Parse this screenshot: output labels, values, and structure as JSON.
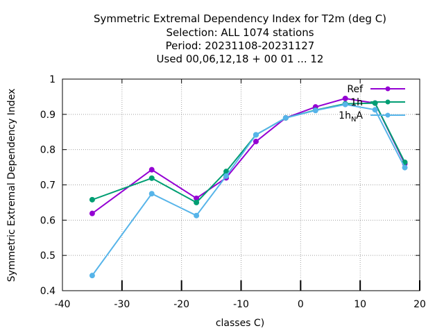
{
  "chart_data": {
    "type": "line",
    "title_lines": [
      "Symmetric Extremal Dependency Index  for T2m (deg C)",
      "Selection: ALL   1074 stations",
      "Period: 20231108-20231127",
      "Used  00,06,12,18 + 00 01 ... 12"
    ],
    "xlabel": "classes C)",
    "ylabel": "Symmetric Extremal Dependency Index",
    "xlim": [
      -40,
      20
    ],
    "ylim": [
      0.4,
      1
    ],
    "xticks": [
      -40,
      -30,
      -20,
      -10,
      0,
      10,
      20
    ],
    "yticks": [
      0.4,
      0.5,
      0.6,
      0.7,
      0.8,
      0.9,
      1
    ],
    "ytick_labels": [
      "0.4",
      "0.5",
      "0.6",
      "0.7",
      "0.8",
      "0.9",
      "1"
    ],
    "grid": true,
    "legend_position": "top-right",
    "x": [
      -35,
      -25,
      -17.5,
      -12.5,
      -7.5,
      -2.5,
      2.5,
      7.5,
      12.5,
      17.5
    ],
    "series": [
      {
        "name": "Ref",
        "color": "#9400d3",
        "values": [
          0.619,
          0.743,
          0.662,
          0.72,
          0.823,
          0.89,
          0.921,
          0.945,
          0.932,
          0.76
        ]
      },
      {
        "name": "1h",
        "color": "#009e73",
        "values": [
          0.658,
          0.719,
          0.65,
          0.738,
          0.842,
          0.89,
          0.912,
          0.93,
          0.932,
          0.764
        ]
      },
      {
        "name": "1h_NA",
        "label_main": "1h",
        "label_sub": "N",
        "label_tail": "A",
        "color": "#56b4e9",
        "values": [
          0.443,
          0.675,
          0.613,
          0.725,
          0.842,
          0.89,
          0.911,
          0.928,
          0.913,
          0.749
        ]
      }
    ],
    "bottom_ticks_x": [
      -30,
      -20,
      -10,
      0,
      10,
      20
    ]
  }
}
